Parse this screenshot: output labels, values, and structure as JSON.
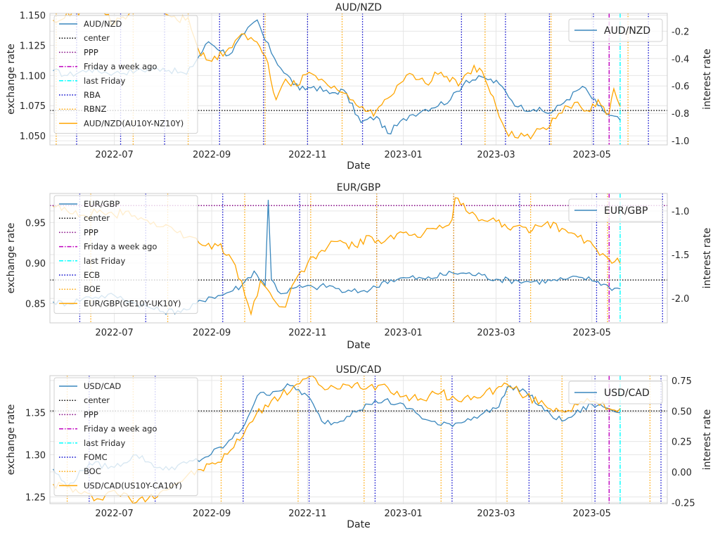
{
  "xlabel": "Date",
  "x_ticks": [
    "2022-07",
    "2022-09",
    "2022-11",
    "2023-01",
    "2023-03",
    "2023-05"
  ],
  "colors": {
    "price": "#3a87bd",
    "diff": "#ffa500",
    "center": "#000000",
    "ppp": "#800080",
    "week_ago": "#bf00bf",
    "last_friday": "#00ffff",
    "cb1": "#0000cc",
    "cb2": "#ffa500"
  },
  "chart_data": [
    {
      "type": "line",
      "title": "AUD/NZD",
      "ylabel": "exchange rate",
      "ylabel_right": "interest rate",
      "x_range": [
        "2022-05-21",
        "2023-06-18"
      ],
      "ylim_left": [
        1.0425,
        1.1515
      ],
      "ylim_right": [
        -1.03,
        -0.07
      ],
      "y_ticks_left": [
        "1.050",
        "1.075",
        "1.100",
        "1.125",
        "1.150"
      ],
      "y_ticks_right": [
        "-1.0",
        "-0.8",
        "-0.6",
        "-0.4",
        "-0.2"
      ],
      "legend_left": [
        "AUD/NZD",
        "center",
        "PPP",
        "Friday a week ago",
        "last Friday",
        "RBA",
        "RBNZ",
        "AUD/NZD(AU10Y-NZ10Y)"
      ],
      "legend_right": "AUD/NZD",
      "center": 1.071,
      "ppp": null,
      "friday_week_ago": "2023-05-12",
      "last_friday": "2023-05-19",
      "cb1_dates": [
        "2022-06-07",
        "2022-07-05",
        "2022-08-02",
        "2022-09-06",
        "2022-10-04",
        "2022-11-01",
        "2022-12-06",
        "2023-02-07",
        "2023-03-07",
        "2023-04-04",
        "2023-05-02",
        "2023-06-06"
      ],
      "cb2_dates": [
        "2022-05-25",
        "2022-07-13",
        "2022-08-17",
        "2022-10-05",
        "2022-11-23",
        "2023-02-22",
        "2023-04-05",
        "2023-05-24"
      ],
      "price_points": [
        [
          "2022-05-23",
          1.104
        ],
        [
          "2022-06-01",
          1.1
        ],
        [
          "2022-06-15",
          1.105
        ],
        [
          "2022-07-01",
          1.102
        ],
        [
          "2022-07-15",
          1.104
        ],
        [
          "2022-08-01",
          1.106
        ],
        [
          "2022-08-16",
          1.101
        ],
        [
          "2022-08-30",
          1.128
        ],
        [
          "2022-09-12",
          1.117
        ],
        [
          "2022-09-22",
          1.135
        ],
        [
          "2022-09-30",
          1.146
        ],
        [
          "2022-10-05",
          1.129
        ],
        [
          "2022-10-15",
          1.106
        ],
        [
          "2022-10-27",
          1.088
        ],
        [
          "2022-11-05",
          1.091
        ],
        [
          "2022-11-15",
          1.085
        ],
        [
          "2022-11-24",
          1.088
        ],
        [
          "2022-12-05",
          1.061
        ],
        [
          "2022-12-15",
          1.066
        ],
        [
          "2022-12-22",
          1.052
        ],
        [
          "2023-01-05",
          1.067
        ],
        [
          "2023-01-15",
          1.072
        ],
        [
          "2023-01-31",
          1.08
        ],
        [
          "2023-02-10",
          1.096
        ],
        [
          "2023-02-22",
          1.098
        ],
        [
          "2023-03-03",
          1.093
        ],
        [
          "2023-03-15",
          1.074
        ],
        [
          "2023-03-25",
          1.072
        ],
        [
          "2023-04-05",
          1.069
        ],
        [
          "2023-04-15",
          1.08
        ],
        [
          "2023-04-25",
          1.091
        ],
        [
          "2023-05-05",
          1.075
        ],
        [
          "2023-05-12",
          1.067
        ],
        [
          "2023-05-19",
          1.063
        ]
      ],
      "diff_points": [
        [
          "2022-05-23",
          -0.12
        ],
        [
          "2022-06-01",
          -0.06
        ],
        [
          "2022-06-10",
          -0.05
        ],
        [
          "2022-06-20",
          0.02
        ],
        [
          "2022-07-01",
          -0.15
        ],
        [
          "2022-07-10",
          -0.08
        ],
        [
          "2022-07-20",
          -0.02
        ],
        [
          "2022-08-01",
          -0.05
        ],
        [
          "2022-08-10",
          -0.12
        ],
        [
          "2022-08-17",
          -0.1
        ],
        [
          "2022-08-25",
          -0.38
        ],
        [
          "2022-09-01",
          -0.42
        ],
        [
          "2022-09-10",
          -0.35
        ],
        [
          "2022-09-20",
          -0.22
        ],
        [
          "2022-09-28",
          -0.27
        ],
        [
          "2022-10-05",
          -0.38
        ],
        [
          "2022-10-12",
          -0.7
        ],
        [
          "2022-10-18",
          -0.55
        ],
        [
          "2022-10-25",
          -0.6
        ],
        [
          "2022-11-02",
          -0.5
        ],
        [
          "2022-11-10",
          -0.55
        ],
        [
          "2022-11-18",
          -0.6
        ],
        [
          "2022-11-28",
          -0.7
        ],
        [
          "2022-12-06",
          -0.75
        ],
        [
          "2022-12-13",
          -0.82
        ],
        [
          "2022-12-20",
          -0.7
        ],
        [
          "2023-01-03",
          -0.52
        ],
        [
          "2023-01-15",
          -0.58
        ],
        [
          "2023-01-25",
          -0.5
        ],
        [
          "2023-02-05",
          -0.6
        ],
        [
          "2023-02-15",
          -0.45
        ],
        [
          "2023-02-22",
          -0.55
        ],
        [
          "2023-03-01",
          -0.75
        ],
        [
          "2023-03-07",
          -0.92
        ],
        [
          "2023-03-15",
          -0.98
        ],
        [
          "2023-03-25",
          -0.95
        ],
        [
          "2023-04-04",
          -0.9
        ],
        [
          "2023-04-10",
          -0.8
        ],
        [
          "2023-04-20",
          -0.72
        ],
        [
          "2023-04-28",
          -0.78
        ],
        [
          "2023-05-05",
          -0.7
        ],
        [
          "2023-05-12",
          -0.8
        ],
        [
          "2023-05-15",
          -0.62
        ],
        [
          "2023-05-19",
          -0.75
        ]
      ]
    },
    {
      "type": "line",
      "title": "EUR/GBP",
      "ylabel": "exchange rate",
      "ylabel_right": "interest rate",
      "x_range": [
        "2022-05-21",
        "2023-06-18"
      ],
      "ylim_left": [
        0.826,
        0.986
      ],
      "ylim_right": [
        -2.28,
        -0.8
      ],
      "y_ticks_left": [
        "0.85",
        "0.90",
        "0.95"
      ],
      "y_ticks_right": [
        "-2.0",
        "-1.5",
        "-1.0"
      ],
      "legend_left": [
        "EUR/GBP",
        "center",
        "PPP",
        "Friday a week ago",
        "last Friday",
        "ECB",
        "BOE",
        "EUR/GBP(GE10Y-UK10Y)"
      ],
      "legend_right": "EUR/GBP",
      "center": 0.879,
      "ppp": 0.971,
      "friday_week_ago": "2023-05-12",
      "last_friday": "2023-05-19",
      "cb1_dates": [
        "2022-06-09",
        "2022-07-21",
        "2022-09-08",
        "2022-10-27",
        "2022-12-15",
        "2023-02-02",
        "2023-03-16",
        "2023-05-04",
        "2023-06-15"
      ],
      "cb2_dates": [
        "2022-06-16",
        "2022-08-04",
        "2022-09-22",
        "2022-11-03",
        "2022-12-15",
        "2023-02-02",
        "2023-03-23",
        "2023-05-11"
      ],
      "price_points": [
        [
          "2022-05-23",
          0.852
        ],
        [
          "2022-06-01",
          0.85
        ],
        [
          "2022-06-15",
          0.858
        ],
        [
          "2022-07-01",
          0.86
        ],
        [
          "2022-07-15",
          0.85
        ],
        [
          "2022-08-01",
          0.84
        ],
        [
          "2022-08-16",
          0.842
        ],
        [
          "2022-08-30",
          0.858
        ],
        [
          "2022-09-07",
          0.86
        ],
        [
          "2022-09-20",
          0.872
        ],
        [
          "2022-09-28",
          0.89
        ],
        [
          "2022-10-05",
          0.872
        ],
        [
          "2022-10-07",
          0.978
        ],
        [
          "2022-10-09",
          0.88
        ],
        [
          "2022-10-15",
          0.862
        ],
        [
          "2022-10-25",
          0.87
        ],
        [
          "2022-11-05",
          0.87
        ],
        [
          "2022-11-15",
          0.872
        ],
        [
          "2022-11-25",
          0.864
        ],
        [
          "2022-12-05",
          0.865
        ],
        [
          "2022-12-15",
          0.87
        ],
        [
          "2022-12-20",
          0.878
        ],
        [
          "2023-01-05",
          0.882
        ],
        [
          "2023-01-15",
          0.88
        ],
        [
          "2023-02-01",
          0.888
        ],
        [
          "2023-02-10",
          0.887
        ],
        [
          "2023-02-20",
          0.885
        ],
        [
          "2023-03-01",
          0.88
        ],
        [
          "2023-03-15",
          0.878
        ],
        [
          "2023-03-25",
          0.877
        ],
        [
          "2023-04-05",
          0.878
        ],
        [
          "2023-04-15",
          0.88
        ],
        [
          "2023-04-25",
          0.882
        ],
        [
          "2023-05-05",
          0.877
        ],
        [
          "2023-05-12",
          0.87
        ],
        [
          "2023-05-19",
          0.868
        ]
      ],
      "diff_points": [
        [
          "2022-05-23",
          -0.95
        ],
        [
          "2022-06-01",
          -1.0
        ],
        [
          "2022-06-10",
          -1.05
        ],
        [
          "2022-06-20",
          -1.02
        ],
        [
          "2022-07-01",
          -1.05
        ],
        [
          "2022-07-10",
          -1.0
        ],
        [
          "2022-07-20",
          -1.1
        ],
        [
          "2022-08-01",
          -1.18
        ],
        [
          "2022-08-10",
          -1.25
        ],
        [
          "2022-08-20",
          -1.3
        ],
        [
          "2022-08-28",
          -1.4
        ],
        [
          "2022-09-05",
          -1.4
        ],
        [
          "2022-09-12",
          -1.5
        ],
        [
          "2022-09-20",
          -1.8
        ],
        [
          "2022-09-26",
          -2.18
        ],
        [
          "2022-10-02",
          -1.8
        ],
        [
          "2022-10-12",
          -2.05
        ],
        [
          "2022-10-18",
          -2.1
        ],
        [
          "2022-10-24",
          -1.8
        ],
        [
          "2022-11-01",
          -1.6
        ],
        [
          "2022-11-10",
          -1.45
        ],
        [
          "2022-11-20",
          -1.35
        ],
        [
          "2022-12-01",
          -1.4
        ],
        [
          "2022-12-12",
          -1.3
        ],
        [
          "2022-12-20",
          -1.35
        ],
        [
          "2023-01-01",
          -1.25
        ],
        [
          "2023-01-10",
          -1.3
        ],
        [
          "2023-01-20",
          -1.2
        ],
        [
          "2023-02-01",
          -1.1
        ],
        [
          "2023-02-03",
          -0.85
        ],
        [
          "2023-02-10",
          -1.0
        ],
        [
          "2023-02-20",
          -1.1
        ],
        [
          "2023-03-01",
          -1.12
        ],
        [
          "2023-03-12",
          -1.18
        ],
        [
          "2023-03-22",
          -1.25
        ],
        [
          "2023-04-01",
          -1.15
        ],
        [
          "2023-04-12",
          -1.2
        ],
        [
          "2023-04-22",
          -1.3
        ],
        [
          "2023-05-02",
          -1.4
        ],
        [
          "2023-05-12",
          -1.55
        ],
        [
          "2023-05-19",
          -1.6
        ]
      ]
    },
    {
      "type": "line",
      "title": "USD/CAD",
      "ylabel": "exchange rate",
      "ylabel_right": "interest rate",
      "x_range": [
        "2022-05-21",
        "2023-06-18"
      ],
      "ylim_left": [
        1.242,
        1.394
      ],
      "ylim_right": [
        -0.26,
        0.79
      ],
      "y_ticks_left": [
        "1.25",
        "1.30",
        "1.35"
      ],
      "y_ticks_right": [
        "-0.25",
        "0.00",
        "0.25",
        "0.50",
        "0.75"
      ],
      "legend_left": [
        "USD/CAD",
        "center",
        "PPP",
        "Friday a week ago",
        "last Friday",
        "FOMC",
        "BOC",
        "USD/CAD(US10Y-CA10Y)"
      ],
      "legend_right": "USD/CAD",
      "center": 1.352,
      "ppp": null,
      "friday_week_ago": "2023-05-12",
      "last_friday": "2023-05-19",
      "cb1_dates": [
        "2022-06-15",
        "2022-07-27",
        "2022-09-21",
        "2022-11-02",
        "2022-12-14",
        "2023-02-01",
        "2023-03-22",
        "2023-05-03",
        "2023-06-14"
      ],
      "cb2_dates": [
        "2022-06-01",
        "2022-07-13",
        "2022-09-07",
        "2022-10-26",
        "2022-12-07",
        "2023-01-25",
        "2023-03-08",
        "2023-04-12",
        "2023-06-07"
      ],
      "price_points": [
        [
          "2022-05-23",
          1.283
        ],
        [
          "2022-06-01",
          1.262
        ],
        [
          "2022-06-15",
          1.29
        ],
        [
          "2022-07-01",
          1.285
        ],
        [
          "2022-07-15",
          1.3
        ],
        [
          "2022-08-01",
          1.282
        ],
        [
          "2022-08-16",
          1.29
        ],
        [
          "2022-08-26",
          1.295
        ],
        [
          "2022-09-10",
          1.312
        ],
        [
          "2022-09-20",
          1.33
        ],
        [
          "2022-09-30",
          1.37
        ],
        [
          "2022-10-10",
          1.375
        ],
        [
          "2022-10-21",
          1.382
        ],
        [
          "2022-11-01",
          1.37
        ],
        [
          "2022-11-10",
          1.34
        ],
        [
          "2022-11-20",
          1.338
        ],
        [
          "2022-11-30",
          1.352
        ],
        [
          "2022-12-10",
          1.36
        ],
        [
          "2022-12-20",
          1.365
        ],
        [
          "2023-01-05",
          1.355
        ],
        [
          "2023-01-15",
          1.342
        ],
        [
          "2023-01-25",
          1.335
        ],
        [
          "2023-02-05",
          1.338
        ],
        [
          "2023-02-15",
          1.345
        ],
        [
          "2023-03-01",
          1.355
        ],
        [
          "2023-03-10",
          1.382
        ],
        [
          "2023-03-20",
          1.375
        ],
        [
          "2023-04-01",
          1.352
        ],
        [
          "2023-04-12",
          1.34
        ],
        [
          "2023-04-20",
          1.348
        ],
        [
          "2023-05-01",
          1.36
        ],
        [
          "2023-05-12",
          1.355
        ],
        [
          "2023-05-19",
          1.35
        ]
      ],
      "diff_points": [
        [
          "2022-05-23",
          -0.1
        ],
        [
          "2022-06-01",
          -0.12
        ],
        [
          "2022-06-10",
          -0.18
        ],
        [
          "2022-06-20",
          -0.22
        ],
        [
          "2022-07-01",
          -0.15
        ],
        [
          "2022-07-15",
          -0.25
        ],
        [
          "2022-08-01",
          -0.15
        ],
        [
          "2022-08-15",
          -0.05
        ],
        [
          "2022-08-25",
          0.02
        ],
        [
          "2022-09-05",
          0.08
        ],
        [
          "2022-09-15",
          0.2
        ],
        [
          "2022-09-25",
          0.4
        ],
        [
          "2022-10-05",
          0.55
        ],
        [
          "2022-10-15",
          0.62
        ],
        [
          "2022-10-25",
          0.72
        ],
        [
          "2022-11-02",
          0.78
        ],
        [
          "2022-11-10",
          0.7
        ],
        [
          "2022-11-20",
          0.68
        ],
        [
          "2022-12-01",
          0.72
        ],
        [
          "2022-12-10",
          0.7
        ],
        [
          "2022-12-20",
          0.72
        ],
        [
          "2023-01-01",
          0.62
        ],
        [
          "2023-01-12",
          0.6
        ],
        [
          "2023-01-25",
          0.65
        ],
        [
          "2023-02-05",
          0.58
        ],
        [
          "2023-02-15",
          0.62
        ],
        [
          "2023-03-01",
          0.68
        ],
        [
          "2023-03-08",
          0.72
        ],
        [
          "2023-03-20",
          0.62
        ],
        [
          "2023-04-01",
          0.55
        ],
        [
          "2023-04-12",
          0.5
        ],
        [
          "2023-04-22",
          0.55
        ],
        [
          "2023-05-02",
          0.58
        ],
        [
          "2023-05-12",
          0.52
        ],
        [
          "2023-05-19",
          0.52
        ]
      ]
    }
  ]
}
